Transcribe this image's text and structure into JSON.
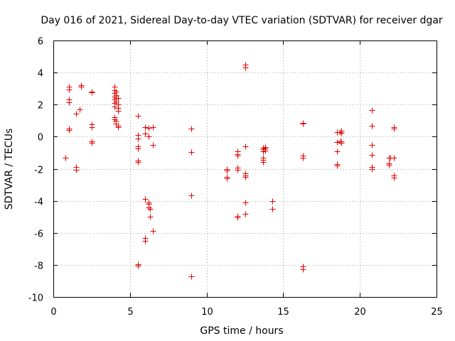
{
  "chart_data": {
    "type": "scatter",
    "title": "Day 016 of 2021, Sidereal Day-to-day VTEC variation (SDTVAR) for receiver dgar",
    "xlabel": "GPS time / hours",
    "ylabel": "SDTVAR / TECUs",
    "xlim": [
      0,
      25
    ],
    "ylim": [
      -10,
      6
    ],
    "xticks": [
      0,
      5,
      10,
      15,
      20,
      25
    ],
    "yticks": [
      -10,
      -8,
      -6,
      -4,
      -2,
      0,
      2,
      4,
      6
    ],
    "xtick_labels": [
      "0",
      "5",
      "10",
      "15",
      "20",
      "25"
    ],
    "ytick_labels": [
      "-10",
      "-8",
      "-6",
      "-4",
      "-2",
      "0",
      "2",
      "4",
      "6"
    ],
    "grid": true,
    "marker": "+",
    "color": "#e00000",
    "series": [
      {
        "name": "SDTVAR",
        "points": [
          [
            0.8,
            -1.3
          ],
          [
            1.0,
            3.1
          ],
          [
            1.0,
            2.95
          ],
          [
            1.0,
            2.3
          ],
          [
            1.0,
            2.15
          ],
          [
            1.0,
            0.5
          ],
          [
            1.0,
            0.4
          ],
          [
            1.5,
            1.45
          ],
          [
            1.5,
            -1.9
          ],
          [
            1.5,
            -2.05
          ],
          [
            1.7,
            1.7
          ],
          [
            1.8,
            3.2
          ],
          [
            1.8,
            3.1
          ],
          [
            2.5,
            2.8
          ],
          [
            2.5,
            2.75
          ],
          [
            2.5,
            0.75
          ],
          [
            2.5,
            0.6
          ],
          [
            2.5,
            -0.3
          ],
          [
            2.5,
            -0.4
          ],
          [
            4.0,
            3.1
          ],
          [
            4.0,
            2.9
          ],
          [
            4.0,
            2.7
          ],
          [
            4.0,
            2.5
          ],
          [
            4.0,
            2.3
          ],
          [
            4.0,
            2.1
          ],
          [
            4.0,
            1.9
          ],
          [
            4.0,
            1.2
          ],
          [
            4.0,
            1.1
          ],
          [
            4.1,
            2.8
          ],
          [
            4.1,
            2.6
          ],
          [
            4.1,
            2.4
          ],
          [
            4.1,
            2.2
          ],
          [
            4.1,
            1.0
          ],
          [
            4.1,
            0.8
          ],
          [
            4.2,
            2.4
          ],
          [
            4.2,
            2.0
          ],
          [
            4.2,
            1.8
          ],
          [
            4.2,
            1.6
          ],
          [
            4.2,
            0.7
          ],
          [
            4.2,
            0.6
          ],
          [
            5.5,
            1.3
          ],
          [
            5.5,
            0.1
          ],
          [
            5.5,
            -0.1
          ],
          [
            5.5,
            -0.6
          ],
          [
            5.5,
            -0.75
          ],
          [
            5.5,
            -1.5
          ],
          [
            5.5,
            -1.6
          ],
          [
            5.5,
            -7.95
          ],
          [
            5.5,
            -8.05
          ],
          [
            6.0,
            0.6
          ],
          [
            6.0,
            0.2
          ],
          [
            6.0,
            -3.9
          ],
          [
            6.0,
            -6.3
          ],
          [
            6.0,
            -6.5
          ],
          [
            6.2,
            0.55
          ],
          [
            6.2,
            0.0
          ],
          [
            6.2,
            -4.1
          ],
          [
            6.2,
            -4.2
          ],
          [
            6.2,
            -4.4
          ],
          [
            6.3,
            -4.5
          ],
          [
            6.3,
            -5.0
          ],
          [
            6.5,
            0.6
          ],
          [
            6.5,
            -0.5
          ],
          [
            6.5,
            -5.9
          ],
          [
            9.0,
            0.5
          ],
          [
            9.0,
            -0.95
          ],
          [
            9.0,
            -3.65
          ],
          [
            9.0,
            -8.7
          ],
          [
            11.3,
            -2.0
          ],
          [
            11.3,
            -2.1
          ],
          [
            11.3,
            -2.5
          ],
          [
            11.3,
            -2.6
          ],
          [
            12.0,
            -0.9
          ],
          [
            12.0,
            -1.1
          ],
          [
            12.0,
            -1.2
          ],
          [
            12.0,
            -1.95
          ],
          [
            12.0,
            -2.05
          ],
          [
            12.0,
            -4.95
          ],
          [
            12.0,
            -5.05
          ],
          [
            12.5,
            4.5
          ],
          [
            12.5,
            4.3
          ],
          [
            12.5,
            -0.6
          ],
          [
            12.5,
            -2.3
          ],
          [
            12.5,
            -2.4
          ],
          [
            12.5,
            -2.5
          ],
          [
            12.5,
            -4.1
          ],
          [
            12.5,
            -4.8
          ],
          [
            13.7,
            -0.7
          ],
          [
            13.7,
            -0.8
          ],
          [
            13.7,
            -0.9
          ],
          [
            13.7,
            -1.3
          ],
          [
            13.7,
            -1.45
          ],
          [
            13.7,
            -1.6
          ],
          [
            13.8,
            -0.65
          ],
          [
            13.8,
            -0.75
          ],
          [
            13.8,
            -0.85
          ],
          [
            14.3,
            -4.0
          ],
          [
            14.3,
            -4.5
          ],
          [
            16.3,
            0.85
          ],
          [
            16.3,
            0.8
          ],
          [
            16.3,
            -1.2
          ],
          [
            16.3,
            -1.3
          ],
          [
            16.3,
            -8.1
          ],
          [
            16.3,
            -8.25
          ],
          [
            18.5,
            0.3
          ],
          [
            18.5,
            -0.35
          ],
          [
            18.5,
            -0.9
          ],
          [
            18.5,
            -1.7
          ],
          [
            18.5,
            -1.8
          ],
          [
            18.8,
            0.35
          ],
          [
            18.8,
            0.25
          ],
          [
            18.8,
            -0.3
          ],
          [
            18.8,
            -0.4
          ],
          [
            18.7,
            0.3
          ],
          [
            18.7,
            -0.3
          ],
          [
            20.8,
            1.65
          ],
          [
            20.8,
            0.7
          ],
          [
            20.8,
            -0.5
          ],
          [
            20.8,
            -1.15
          ],
          [
            20.8,
            -1.9
          ],
          [
            20.8,
            -2.0
          ],
          [
            21.9,
            -1.3
          ],
          [
            21.9,
            -1.65
          ],
          [
            21.9,
            -1.75
          ],
          [
            22.0,
            -1.3
          ],
          [
            22.2,
            0.6
          ],
          [
            22.2,
            0.5
          ],
          [
            22.2,
            -1.3
          ],
          [
            22.2,
            -2.4
          ],
          [
            22.2,
            -2.55
          ]
        ]
      }
    ]
  }
}
